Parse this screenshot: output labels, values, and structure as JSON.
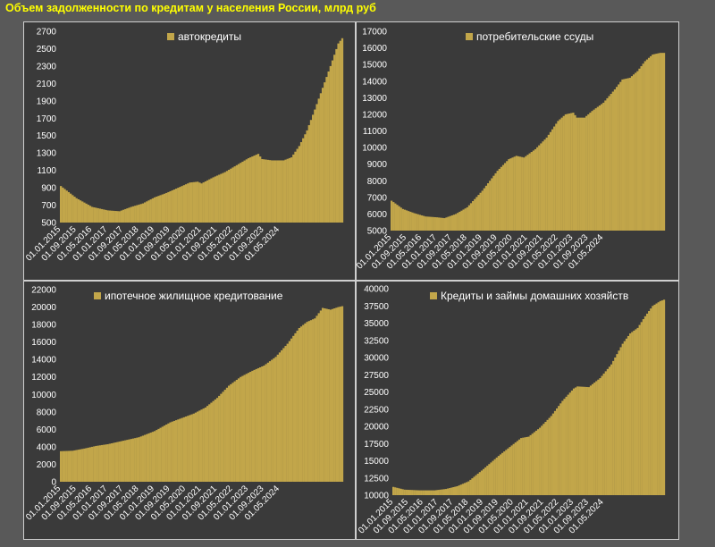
{
  "page_title": "Объем задолженности по кредитам у населения России, млрд руб",
  "bar_color": "#c2a64a",
  "chart_data": [
    {
      "type": "bar",
      "legend": "автокредиты",
      "ylim": [
        500,
        2700
      ],
      "yticks": [
        500,
        700,
        900,
        1100,
        1300,
        1500,
        1700,
        1900,
        2100,
        2300,
        2500,
        2700
      ],
      "xticks": [
        "01.01.2015",
        "01.09.2015",
        "01.05.2016",
        "01.01.2017",
        "01.09.2017",
        "01.05.2018",
        "01.01.2019",
        "01.09.2019",
        "01.05.2020",
        "01.01.2021",
        "01.09.2021",
        "01.05.2022",
        "01.01.2023",
        "01.09.2023",
        "01.05.2024"
      ],
      "anchors": [
        [
          0,
          920
        ],
        [
          8,
          780
        ],
        [
          16,
          680
        ],
        [
          24,
          640
        ],
        [
          30,
          630
        ],
        [
          36,
          680
        ],
        [
          42,
          720
        ],
        [
          48,
          790
        ],
        [
          54,
          840
        ],
        [
          60,
          900
        ],
        [
          66,
          960
        ],
        [
          70,
          970
        ],
        [
          72,
          950
        ],
        [
          78,
          1020
        ],
        [
          84,
          1080
        ],
        [
          90,
          1160
        ],
        [
          96,
          1240
        ],
        [
          101,
          1290
        ],
        [
          103,
          1230
        ],
        [
          108,
          1215
        ],
        [
          114,
          1215
        ],
        [
          118,
          1250
        ],
        [
          122,
          1380
        ],
        [
          126,
          1560
        ],
        [
          130,
          1800
        ],
        [
          134,
          2050
        ],
        [
          138,
          2300
        ],
        [
          142,
          2560
        ],
        [
          144,
          2620
        ]
      ]
    },
    {
      "type": "bar",
      "legend": "потребительские ссуды",
      "ylim": [
        5000,
        17000
      ],
      "yticks": [
        5000,
        6000,
        7000,
        8000,
        9000,
        10000,
        11000,
        12000,
        13000,
        14000,
        15000,
        16000,
        17000
      ],
      "xticks": [
        "01.01.2015",
        "01.09.2015",
        "01.05.2016",
        "01.01.2017",
        "01.09.2017",
        "01.05.2018",
        "01.01.2019",
        "01.09.2019",
        "01.05.2020",
        "01.01.2021",
        "01.09.2021",
        "01.05.2022",
        "01.01.2023",
        "01.09.2023",
        "01.05.2024"
      ],
      "anchors": [
        [
          0,
          6800
        ],
        [
          6,
          6300
        ],
        [
          12,
          6050
        ],
        [
          18,
          5850
        ],
        [
          24,
          5800
        ],
        [
          28,
          5750
        ],
        [
          34,
          6000
        ],
        [
          40,
          6400
        ],
        [
          48,
          7400
        ],
        [
          56,
          8600
        ],
        [
          62,
          9300
        ],
        [
          66,
          9500
        ],
        [
          70,
          9400
        ],
        [
          76,
          9900
        ],
        [
          82,
          10600
        ],
        [
          88,
          11600
        ],
        [
          92,
          12000
        ],
        [
          96,
          12100
        ],
        [
          98,
          11800
        ],
        [
          102,
          11800
        ],
        [
          106,
          12200
        ],
        [
          112,
          12700
        ],
        [
          118,
          13500
        ],
        [
          122,
          14100
        ],
        [
          126,
          14200
        ],
        [
          130,
          14600
        ],
        [
          134,
          15200
        ],
        [
          138,
          15600
        ],
        [
          142,
          15700
        ],
        [
          144,
          15700
        ]
      ]
    },
    {
      "type": "bar",
      "legend": "ипотечное жилищное кредитование",
      "ylim": [
        0,
        22000
      ],
      "yticks": [
        0,
        2000,
        4000,
        6000,
        8000,
        10000,
        12000,
        14000,
        16000,
        18000,
        20000,
        22000
      ],
      "xticks": [
        "01.01.2015",
        "01.09.2015",
        "01.05.2016",
        "01.01.2017",
        "01.09.2017",
        "01.05.2018",
        "01.01.2019",
        "01.09.2019",
        "01.05.2020",
        "01.01.2021",
        "01.09.2021",
        "01.05.2022",
        "01.01.2023",
        "01.09.2023",
        "01.05.2024"
      ],
      "anchors": [
        [
          0,
          3500
        ],
        [
          6,
          3550
        ],
        [
          12,
          3800
        ],
        [
          18,
          4100
        ],
        [
          24,
          4300
        ],
        [
          32,
          4700
        ],
        [
          40,
          5100
        ],
        [
          48,
          5800
        ],
        [
          56,
          6800
        ],
        [
          62,
          7300
        ],
        [
          68,
          7800
        ],
        [
          74,
          8500
        ],
        [
          80,
          9600
        ],
        [
          86,
          11000
        ],
        [
          92,
          12000
        ],
        [
          98,
          12700
        ],
        [
          104,
          13300
        ],
        [
          110,
          14300
        ],
        [
          116,
          15800
        ],
        [
          122,
          17600
        ],
        [
          126,
          18300
        ],
        [
          130,
          18700
        ],
        [
          134,
          19900
        ],
        [
          138,
          19700
        ],
        [
          142,
          20000
        ],
        [
          144,
          20100
        ]
      ]
    },
    {
      "type": "bar",
      "legend": "Кредиты и займы домашних хозяйств",
      "ylim": [
        10000,
        40000
      ],
      "yticks": [
        10000,
        12500,
        15000,
        17500,
        20000,
        22500,
        25000,
        27500,
        30000,
        32500,
        35000,
        37500,
        40000
      ],
      "xticks": [
        "01.01.2015",
        "01.09.2015",
        "01.05.2016",
        "01.01.2017",
        "01.09.2017",
        "01.05.2018",
        "01.01.2019",
        "01.09.2019",
        "01.05.2020",
        "01.01.2021",
        "01.09.2021",
        "01.05.2022",
        "01.01.2023",
        "01.09.2023",
        "01.05.2024"
      ],
      "anchors": [
        [
          0,
          11200
        ],
        [
          6,
          10800
        ],
        [
          14,
          10700
        ],
        [
          22,
          10700
        ],
        [
          28,
          10900
        ],
        [
          34,
          11300
        ],
        [
          40,
          12000
        ],
        [
          48,
          13800
        ],
        [
          56,
          15700
        ],
        [
          62,
          17000
        ],
        [
          68,
          18300
        ],
        [
          72,
          18500
        ],
        [
          78,
          19800
        ],
        [
          84,
          21500
        ],
        [
          90,
          23700
        ],
        [
          96,
          25500
        ],
        [
          98,
          25800
        ],
        [
          104,
          25700
        ],
        [
          110,
          27000
        ],
        [
          116,
          29000
        ],
        [
          122,
          32000
        ],
        [
          126,
          33500
        ],
        [
          130,
          34300
        ],
        [
          134,
          36000
        ],
        [
          138,
          37500
        ],
        [
          142,
          38200
        ],
        [
          144,
          38400
        ]
      ]
    }
  ]
}
